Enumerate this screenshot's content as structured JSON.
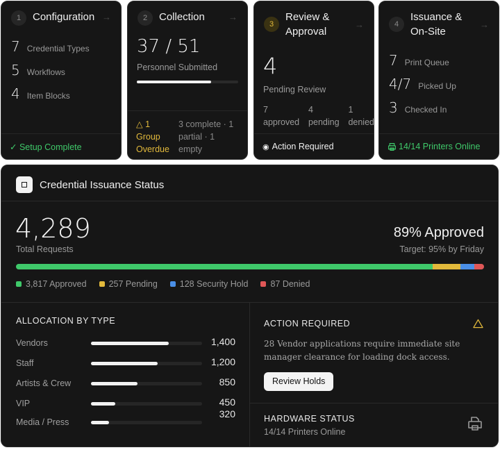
{
  "steps": [
    {
      "num": "1",
      "title": "Configuration",
      "stats": [
        {
          "value": "7",
          "label": "Credential Types"
        },
        {
          "value": "5",
          "label": "Workflows"
        },
        {
          "value": "4",
          "label": "Item Blocks"
        }
      ],
      "footer": "✓ Setup Complete"
    },
    {
      "num": "2",
      "title": "Collection",
      "big": "37 / 51",
      "label": "Personnel Submitted",
      "progress": 0.73,
      "alert_line1": "△ 1",
      "alert_line2": "Group",
      "alert_line3": "Overdue",
      "detail_line1": "3 complete · 1",
      "detail_line2": "partial · 1",
      "detail_line3": "empty"
    },
    {
      "num": "3",
      "title_line1": "Review &",
      "title_line2": "Approval",
      "big": "4",
      "label": "Pending Review",
      "breakdown": [
        {
          "value": "7",
          "label": "approved"
        },
        {
          "value": "4",
          "label": "pending"
        },
        {
          "value": "1",
          "label": "denied"
        }
      ],
      "footer": "Action Required"
    },
    {
      "num": "4",
      "title_line1": "Issuance &",
      "title_line2": "On-Site",
      "stats": [
        {
          "value": "7",
          "label": "Print Queue"
        },
        {
          "value": "4/7",
          "label": "Picked Up"
        },
        {
          "value": "3",
          "label": "Checked In"
        }
      ],
      "footer": "14/14 Printers Online"
    }
  ],
  "status_panel": {
    "title": "Credential Issuance Status",
    "total": "4,289",
    "total_label": "Total Requests",
    "approved_pct": "89% Approved",
    "target": "Target: 95% by Friday",
    "segments": [
      {
        "label": "3,817 Approved",
        "value": 3817,
        "color": "#3fc96a"
      },
      {
        "label": "257 Pending",
        "value": 257,
        "color": "#e2b93b"
      },
      {
        "label": "128 Security Hold",
        "value": 128,
        "color": "#4a8fe6"
      },
      {
        "label": "87 Denied",
        "value": 87,
        "color": "#e05757"
      }
    ]
  },
  "allocation": {
    "heading": "ALLOCATION BY TYPE",
    "rows": [
      {
        "label": "Vendors",
        "value": "1,400",
        "fraction": 0.7
      },
      {
        "label": "Staff",
        "value": "1,200",
        "fraction": 0.6
      },
      {
        "label": "Artists & Crew",
        "value": "850",
        "fraction": 0.42
      },
      {
        "label": "VIP",
        "value": "450",
        "fraction": 0.22
      },
      {
        "label": "Media / Press",
        "value": "320",
        "fraction": 0.16
      }
    ]
  },
  "action": {
    "heading": "ACTION REQUIRED",
    "message_line1": "28 Vendor applications require immediate site",
    "message_line2": "manager clearance for loading dock access.",
    "button": "Review Holds"
  },
  "hardware": {
    "heading": "HARDWARE STATUS",
    "status": "14/14 Printers Online"
  }
}
